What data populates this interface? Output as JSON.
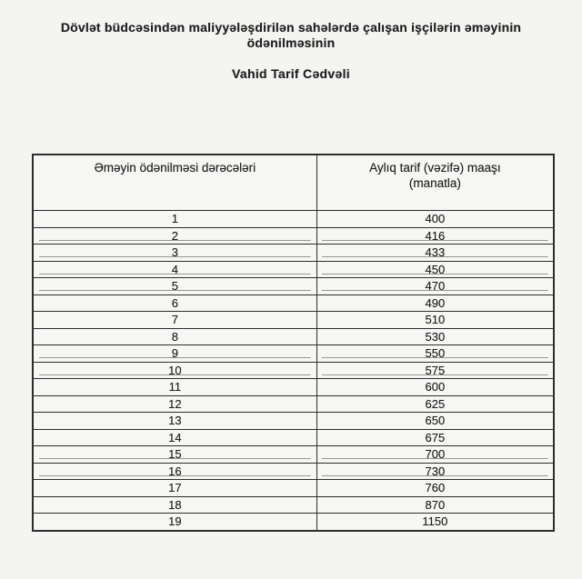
{
  "document": {
    "title_line1": "Dövlət büdcəsindən maliyyələşdirilən sahələrdə çalışan işçilərin əməyinin",
    "title_line2": "ödənilməsinin",
    "subtitle": "Vahid Tarif Cədvəli"
  },
  "table": {
    "header_grade": "Əməyin ödənilməsi dərəcələri",
    "header_salary": "Aylıq tarif (vəzifə) maaşı\n(manatla)",
    "rows": [
      {
        "grade": "1",
        "salary": "400",
        "scan_line": false
      },
      {
        "grade": "2",
        "salary": "416",
        "scan_line": true
      },
      {
        "grade": "3",
        "salary": "433",
        "scan_line": true
      },
      {
        "grade": "4",
        "salary": "450",
        "scan_line": true
      },
      {
        "grade": "5",
        "salary": "470",
        "scan_line": true
      },
      {
        "grade": "6",
        "salary": "490",
        "scan_line": false
      },
      {
        "grade": "7",
        "salary": "510",
        "scan_line": false
      },
      {
        "grade": "8",
        "salary": "530",
        "scan_line": false
      },
      {
        "grade": "9",
        "salary": "550",
        "scan_line": true
      },
      {
        "grade": "10",
        "salary": "575",
        "scan_line": true
      },
      {
        "grade": "11",
        "salary": "600",
        "scan_line": false
      },
      {
        "grade": "12",
        "salary": "625",
        "scan_line": false
      },
      {
        "grade": "13",
        "salary": "650",
        "scan_line": false
      },
      {
        "grade": "14",
        "salary": "675",
        "scan_line": false
      },
      {
        "grade": "15",
        "salary": "700",
        "scan_line": true
      },
      {
        "grade": "16",
        "salary": "730",
        "scan_line": true
      },
      {
        "grade": "17",
        "salary": "760",
        "scan_line": false
      },
      {
        "grade": "18",
        "salary": "870",
        "scan_line": false
      },
      {
        "grade": "19",
        "salary": "1150",
        "scan_line": false
      }
    ]
  },
  "colors": {
    "ink": "#1f1f1f",
    "border": "#2d2d2d",
    "background": "#f4f4f2"
  }
}
